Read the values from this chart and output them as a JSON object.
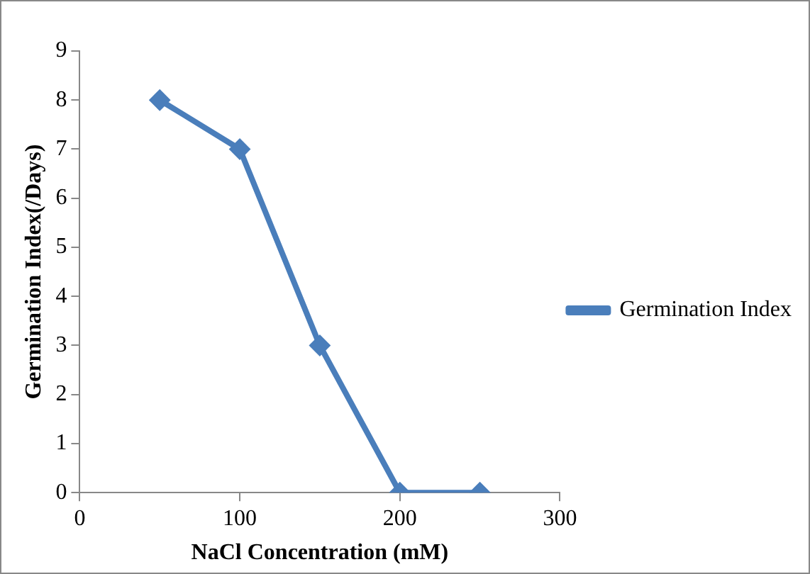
{
  "chart_data": {
    "type": "line",
    "xlabel": "NaCl Concentration (mM)",
    "ylabel": "Germination Index(/Days)",
    "x": [
      50,
      100,
      150,
      200,
      250
    ],
    "series": [
      {
        "name": "Germination Index",
        "color": "#4a7ebb",
        "values": [
          8,
          7,
          3,
          0,
          0
        ]
      }
    ],
    "xlim": [
      0,
      300
    ],
    "xticks": [
      0,
      100,
      200,
      300
    ],
    "ylim": [
      0,
      9
    ],
    "yticks": [
      0,
      1,
      2,
      3,
      4,
      5,
      6,
      7,
      8,
      9
    ],
    "grid": false,
    "legend": "right",
    "marker": "diamond",
    "line_style": "solid"
  }
}
